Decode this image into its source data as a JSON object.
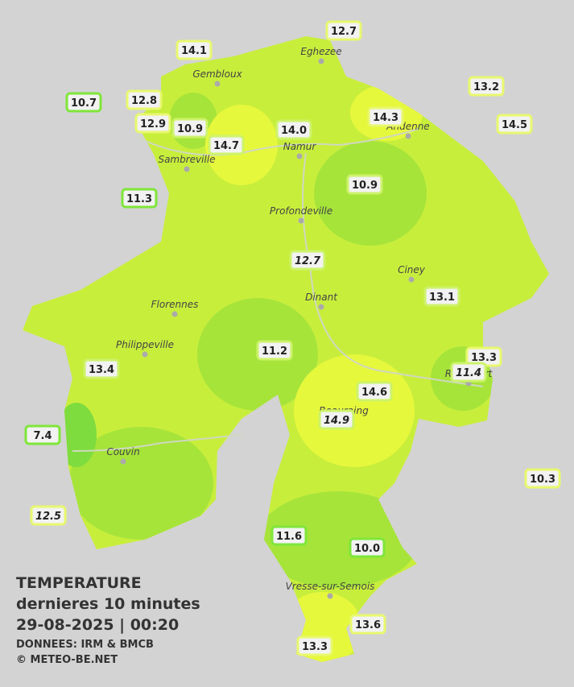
{
  "title": {
    "lines": [
      "TEMPERATURE",
      "dernieres 10 minutes",
      "29-08-2025  |  00:20"
    ],
    "credits": [
      "DONNEES: IRM & BMCB",
      "© METEO-BE.NET"
    ]
  },
  "cities": [
    "Eghezee",
    "Gembloux",
    "Andenne",
    "Namur",
    "Sambreville",
    "Profondeville",
    "Ciney",
    "Dinant",
    "Florennes",
    "Philippeville",
    "Rochefort",
    "Beauraing",
    "Couvin",
    "Vresse-sur-Semois"
  ],
  "stations": [
    "12.7",
    "14.1",
    "13.2",
    "10.7",
    "12.8",
    "14.3",
    "12.9",
    "10.9",
    "14.0",
    "14.5",
    "14.7",
    "10.9",
    "11.3",
    "12.7",
    "13.1",
    "11.2",
    "13.3",
    "11.4",
    "13.4",
    "14.6",
    "14.9",
    "7.4",
    "10.3",
    "12.5",
    "11.6",
    "10.0",
    "13.6",
    "13.3"
  ]
}
